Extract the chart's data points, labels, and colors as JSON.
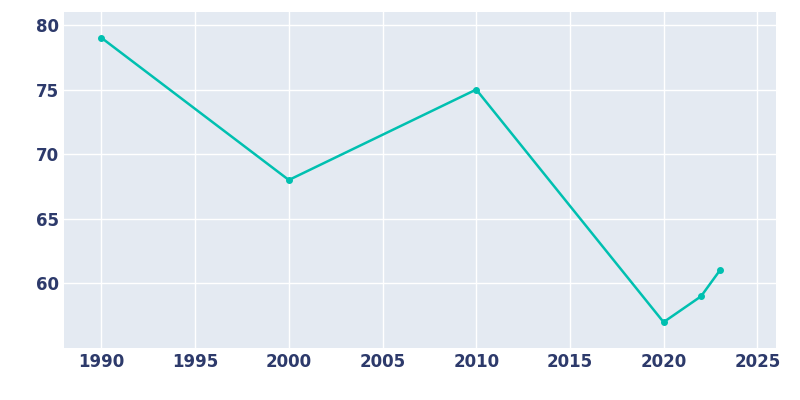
{
  "years": [
    1990,
    2000,
    2010,
    2020,
    2022,
    2023
  ],
  "population": [
    79,
    68,
    75,
    57,
    59,
    61
  ],
  "line_color": "#00c0b0",
  "marker": "o",
  "marker_size": 4,
  "background_color": "#e4eaf2",
  "fig_background": "#ffffff",
  "grid_color": "#ffffff",
  "xlim": [
    1988,
    2026
  ],
  "ylim": [
    55,
    81
  ],
  "xticks": [
    1990,
    1995,
    2000,
    2005,
    2010,
    2015,
    2020,
    2025
  ],
  "yticks": [
    60,
    65,
    70,
    75,
    80
  ],
  "tick_color": "#2d3a6b",
  "tick_fontsize": 12,
  "linewidth": 1.8
}
